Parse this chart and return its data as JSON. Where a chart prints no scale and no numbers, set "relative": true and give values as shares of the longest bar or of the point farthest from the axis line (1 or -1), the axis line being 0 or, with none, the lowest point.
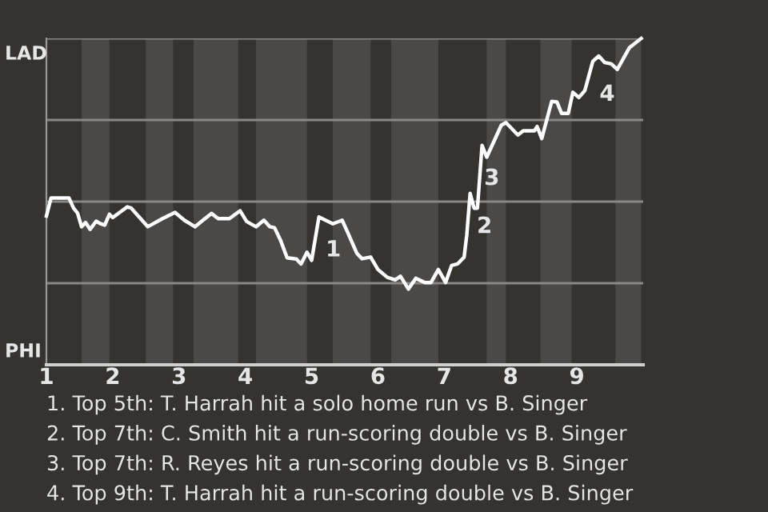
{
  "chart_data": {
    "type": "line",
    "relative": true,
    "x": [
      1.0,
      1.07,
      1.15,
      1.34,
      1.41,
      1.47,
      1.53,
      1.59,
      1.66,
      1.75,
      1.81,
      1.88,
      1.95,
      2.0,
      2.22,
      2.28,
      2.53,
      2.75,
      2.94,
      3.08,
      3.24,
      3.49,
      3.59,
      3.76,
      3.92,
      4.02,
      4.16,
      4.28,
      4.37,
      4.44,
      4.53,
      4.63,
      4.77,
      4.84,
      4.93,
      5.0,
      5.11,
      5.32,
      5.46,
      5.54,
      5.68,
      5.76,
      5.89,
      6.0,
      6.14,
      6.26,
      6.34,
      6.46,
      6.57,
      6.71,
      6.8,
      6.91,
      7.02,
      7.11,
      7.2,
      7.3,
      7.34,
      7.39,
      7.45,
      7.5,
      7.57,
      7.64,
      7.86,
      7.93,
      8.11,
      8.19,
      8.36,
      8.4,
      8.47,
      8.62,
      8.7,
      8.77,
      8.87,
      8.94,
      9.03,
      9.12,
      9.24,
      9.33,
      9.42,
      9.52,
      9.61,
      9.79,
      9.97
    ],
    "series": [
      {
        "color": "#ffffff",
        "values": [
          0.456,
          0.511,
          0.511,
          0.511,
          0.48,
          0.465,
          0.423,
          0.436,
          0.415,
          0.44,
          0.433,
          0.428,
          0.461,
          0.451,
          0.484,
          0.48,
          0.423,
          0.448,
          0.467,
          0.443,
          0.423,
          0.464,
          0.448,
          0.448,
          0.472,
          0.439,
          0.423,
          0.443,
          0.423,
          0.42,
          0.382,
          0.328,
          0.324,
          0.309,
          0.345,
          0.32,
          0.453,
          0.432,
          0.443,
          0.407,
          0.342,
          0.325,
          0.33,
          0.292,
          0.268,
          0.26,
          0.271,
          0.232,
          0.265,
          0.252,
          0.252,
          0.292,
          0.252,
          0.304,
          0.309,
          0.33,
          0.399,
          0.525,
          0.48,
          0.48,
          0.672,
          0.636,
          0.734,
          0.742,
          0.704,
          0.717,
          0.717,
          0.73,
          0.693,
          0.807,
          0.805,
          0.77,
          0.77,
          0.835,
          0.819,
          0.84,
          0.93,
          0.946,
          0.926,
          0.922,
          0.905,
          0.971,
          1.0
        ]
      }
    ],
    "xlim": [
      1,
      10
    ],
    "xticks": [
      1,
      2,
      3,
      4,
      5,
      6,
      7,
      8,
      9
    ],
    "ref_lines": [
      {
        "axis": "y",
        "value": 0.25,
        "color": "#8a8886"
      },
      {
        "axis": "y",
        "value": 0.5,
        "color": "#8a8886"
      },
      {
        "axis": "y",
        "value": 0.75,
        "color": "#8a8886"
      },
      {
        "axis": "y",
        "value": 1.0,
        "color": "#8a8886"
      }
    ],
    "bands": [
      {
        "axis": "x",
        "from": 1.53,
        "to": 1.95,
        "color": "#4b4947"
      },
      {
        "axis": "x",
        "from": 2.5,
        "to": 2.91,
        "color": "#4b4947"
      },
      {
        "axis": "x",
        "from": 3.22,
        "to": 3.89,
        "color": "#4b4947"
      },
      {
        "axis": "x",
        "from": 4.16,
        "to": 4.93,
        "color": "#4b4947"
      },
      {
        "axis": "x",
        "from": 5.32,
        "to": 5.89,
        "color": "#4b4947"
      },
      {
        "axis": "x",
        "from": 6.2,
        "to": 6.91,
        "color": "#4b4947"
      },
      {
        "axis": "x",
        "from": 7.64,
        "to": 7.93,
        "color": "#4b4947"
      },
      {
        "axis": "x",
        "from": 8.45,
        "to": 8.92,
        "color": "#4b4947"
      },
      {
        "axis": "x",
        "from": 9.58,
        "to": 9.97,
        "color": "#4b4947"
      }
    ],
    "annotations": [
      "LAD",
      "PHI",
      {
        "text": "1",
        "x": 5.11,
        "y": 0.453
      },
      {
        "text": "2",
        "x": 7.39,
        "y": 0.525
      },
      {
        "text": "3",
        "x": 7.5,
        "y": 0.672
      },
      {
        "text": "4",
        "x": 9.24,
        "y": 0.93
      },
      "1. Top 5th: T. Harrah hit a solo home run vs B. Singer",
      "2. Top 7th: C. Smith hit a run-scoring double vs B. Singer",
      "3. Top 7th: R. Reyes hit a run-scoring double vs B. Singer",
      "4. Top 9th: T. Harrah hit a run-scoring double vs B. Singer"
    ],
    "marker": "none",
    "line_style": "solid"
  }
}
